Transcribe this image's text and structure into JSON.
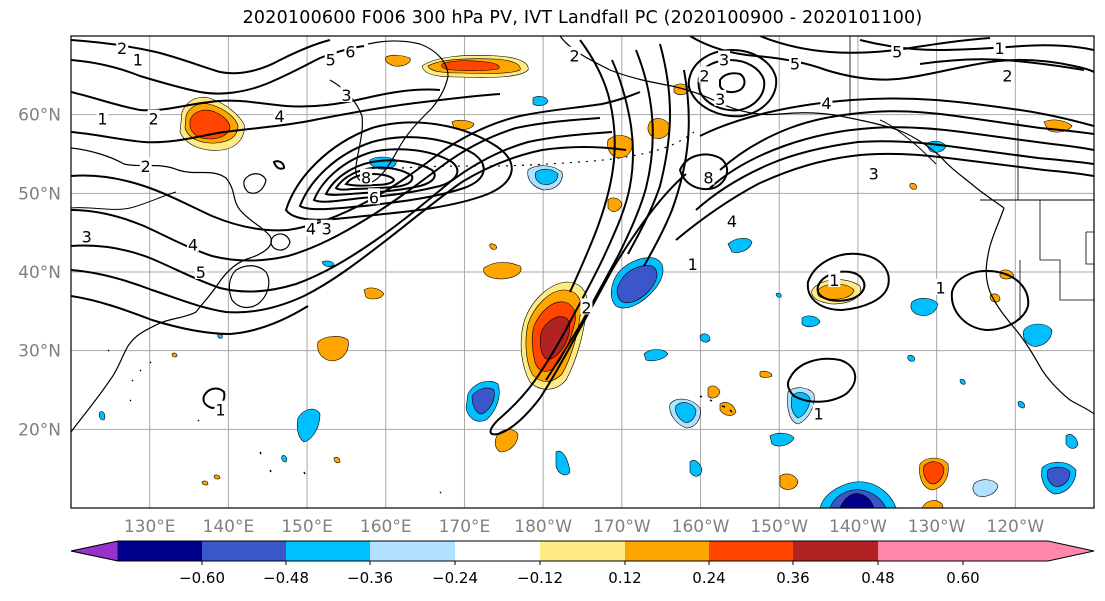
{
  "title": "2020100600 F006 300 hPa PV, IVT Landfall PC (2020100900 - 2020101100)",
  "map": {
    "lon_labels": [
      "130°E",
      "140°E",
      "150°E",
      "160°E",
      "170°E",
      "180°W",
      "170°W",
      "160°W",
      "150°W",
      "140°W",
      "130°W",
      "120°W"
    ],
    "lat_labels": [
      "60°N",
      "50°N",
      "40°N",
      "30°N",
      "20°N"
    ],
    "lon_range": [
      120,
      250
    ],
    "lat_range": [
      10,
      70
    ],
    "gridlines": true,
    "label_color": "#808080",
    "contour_labels": [
      {
        "text": "2",
        "lon": 126.5,
        "lat": 68.5
      },
      {
        "text": "1",
        "lon": 128.5,
        "lat": 67.0
      },
      {
        "text": "1",
        "lon": 124.0,
        "lat": 59.5
      },
      {
        "text": "2",
        "lon": 130.5,
        "lat": 59.5
      },
      {
        "text": "2",
        "lon": 129.5,
        "lat": 53.5
      },
      {
        "text": "3",
        "lon": 122.0,
        "lat": 44.5
      },
      {
        "text": "4",
        "lon": 146.5,
        "lat": 59.8
      },
      {
        "text": "4",
        "lon": 135.5,
        "lat": 43.5
      },
      {
        "text": "5",
        "lon": 136.5,
        "lat": 40.0
      },
      {
        "text": "4",
        "lon": 150.5,
        "lat": 45.5
      },
      {
        "text": "3",
        "lon": 152.5,
        "lat": 45.5
      },
      {
        "text": "5",
        "lon": 153.0,
        "lat": 67.0
      },
      {
        "text": "6",
        "lon": 155.5,
        "lat": 68.0
      },
      {
        "text": "3",
        "lon": 155.0,
        "lat": 62.5
      },
      {
        "text": "8",
        "lon": 157.5,
        "lat": 52.0
      },
      {
        "text": "6",
        "lon": 158.5,
        "lat": 49.5
      },
      {
        "text": "2",
        "lon": 184.0,
        "lat": 67.5
      },
      {
        "text": "3",
        "lon": 203.0,
        "lat": 67.0
      },
      {
        "text": "2",
        "lon": 200.5,
        "lat": 65.0
      },
      {
        "text": "3",
        "lon": 202.5,
        "lat": 62.0
      },
      {
        "text": "5",
        "lon": 212.0,
        "lat": 66.5
      },
      {
        "text": "4",
        "lon": 216.0,
        "lat": 61.5
      },
      {
        "text": "3",
        "lon": 222.0,
        "lat": 52.5
      },
      {
        "text": "5",
        "lon": 225.0,
        "lat": 68.0
      },
      {
        "text": "2",
        "lon": 239.0,
        "lat": 65.0
      },
      {
        "text": "1",
        "lon": 238.0,
        "lat": 68.5
      },
      {
        "text": "8",
        "lon": 201.0,
        "lat": 52.0
      },
      {
        "text": "4",
        "lon": 204.0,
        "lat": 46.5
      },
      {
        "text": "1",
        "lon": 199.0,
        "lat": 41.0
      },
      {
        "text": "2",
        "lon": 185.5,
        "lat": 35.5
      },
      {
        "text": "1",
        "lon": 217.0,
        "lat": 39.0
      },
      {
        "text": "1",
        "lon": 230.5,
        "lat": 38.0
      },
      {
        "text": "1",
        "lon": 139.0,
        "lat": 22.5
      },
      {
        "text": "1",
        "lon": 215.0,
        "lat": 22.0
      }
    ]
  },
  "colorbar": {
    "ticks": [
      "−0.60",
      "−0.48",
      "−0.36",
      "−0.24",
      "−0.12",
      "0.12",
      "0.24",
      "0.36",
      "0.48",
      "0.60"
    ],
    "colors": [
      "#9932CC",
      "#00008B",
      "#3A56C9",
      "#00BFFF",
      "#B0E2FF",
      "#FFFFFF",
      "#FFEB85",
      "#FFA500",
      "#FF4500",
      "#B22222",
      "#FF88AA"
    ]
  },
  "fill_colors": {
    "neg_light": "#B0E2FF",
    "neg_mid": "#00BFFF",
    "neg_strong": "#3A56C9",
    "neg_max": "#00008B",
    "pos_light": "#FFEB85",
    "pos_mid": "#FFA500",
    "pos_strong": "#FF4500",
    "pos_max": "#B22222"
  }
}
